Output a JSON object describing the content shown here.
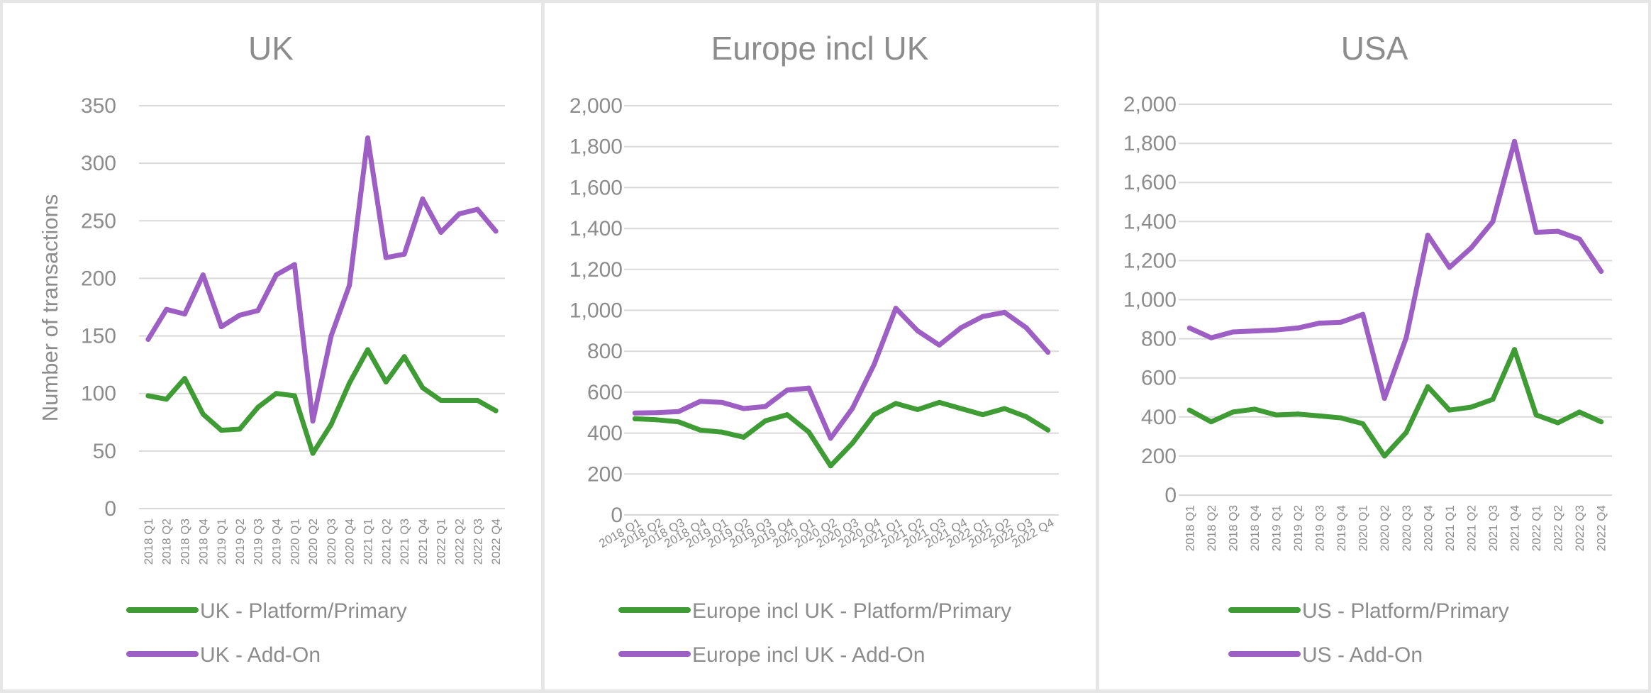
{
  "chart_data": [
    {
      "type": "line",
      "title": "UK",
      "ylabel": "Number of transactions",
      "ylim": [
        0,
        350
      ],
      "yticks": [
        "0",
        "50",
        "100",
        "150",
        "200",
        "250",
        "300",
        "350"
      ],
      "ytick_values": [
        0,
        50,
        100,
        150,
        200,
        250,
        300,
        350
      ],
      "categories": [
        "2018 Q1",
        "2018 Q2",
        "2018 Q3",
        "2018 Q4",
        "2019 Q1",
        "2019 Q2",
        "2019 Q3",
        "2019 Q4",
        "2020 Q1",
        "2020 Q2",
        "2020 Q3",
        "2020 Q4",
        "2021 Q1",
        "2021 Q2",
        "2021 Q3",
        "2021 Q4",
        "2022 Q1",
        "2022 Q2",
        "2022 Q3",
        "2022 Q4"
      ],
      "grid": true,
      "legend_position": "bottom",
      "series": [
        {
          "name": "UK - Platform/Primary",
          "color": "#3f9c35",
          "values": [
            98,
            95,
            113,
            82,
            68,
            69,
            88,
            100,
            98,
            48,
            73,
            109,
            138,
            110,
            132,
            105,
            94,
            94,
            94,
            85
          ]
        },
        {
          "name": "UK - Add-On",
          "color": "#9e5fc4",
          "values": [
            147,
            173,
            169,
            203,
            158,
            168,
            172,
            203,
            212,
            76,
            150,
            194,
            322,
            218,
            221,
            269,
            240,
            256,
            260,
            241
          ]
        }
      ]
    },
    {
      "type": "line",
      "title": "Europe incl UK",
      "ylabel": "",
      "ylim": [
        0,
        2000
      ],
      "yticks": [
        "0",
        "200",
        "400",
        "600",
        "800",
        "1,000",
        "1,200",
        "1,400",
        "1,600",
        "1,800",
        "2,000"
      ],
      "ytick_values": [
        0,
        200,
        400,
        600,
        800,
        1000,
        1200,
        1400,
        1600,
        1800,
        2000
      ],
      "categories": [
        "2018 Q1",
        "2018 Q2",
        "2018 Q3",
        "2018 Q4",
        "2019 Q1",
        "2019 Q2",
        "2019 Q3",
        "2019 Q4",
        "2020 Q1",
        "2020 Q2",
        "2020 Q3",
        "2020 Q4",
        "2021 Q1",
        "2021 Q2",
        "2021 Q3",
        "2021 Q4",
        "2022 Q1",
        "2022 Q2",
        "2022 Q3",
        "2022 Q4"
      ],
      "grid": true,
      "legend_position": "bottom",
      "series": [
        {
          "name": "Europe incl UK - Platform/Primary",
          "color": "#3f9c35",
          "values": [
            470,
            465,
            455,
            415,
            405,
            380,
            460,
            490,
            405,
            240,
            350,
            490,
            545,
            515,
            550,
            520,
            490,
            520,
            480,
            415
          ]
        },
        {
          "name": "Europe incl UK - Add-On",
          "color": "#9e5fc4",
          "values": [
            498,
            500,
            505,
            555,
            550,
            520,
            530,
            610,
            620,
            375,
            520,
            735,
            1010,
            900,
            830,
            915,
            970,
            990,
            915,
            795
          ]
        }
      ]
    },
    {
      "type": "line",
      "title": "USA",
      "ylabel": "",
      "ylim": [
        0,
        2000
      ],
      "yticks": [
        "0",
        "200",
        "400",
        "600",
        "800",
        "1,000",
        "1,200",
        "1,400",
        "1,600",
        "1,800",
        "2,000"
      ],
      "ytick_values": [
        0,
        200,
        400,
        600,
        800,
        1000,
        1200,
        1400,
        1600,
        1800,
        2000
      ],
      "categories": [
        "2018 Q1",
        "2018 Q2",
        "2018 Q3",
        "2018 Q4",
        "2019 Q1",
        "2019 Q2",
        "2019 Q3",
        "2019 Q4",
        "2020 Q1",
        "2020 Q2",
        "2020 Q3",
        "2020 Q4",
        "2021 Q1",
        "2021 Q2",
        "2021 Q3",
        "2021 Q4",
        "2022 Q1",
        "2022 Q2",
        "2022 Q3",
        "2022 Q4"
      ],
      "grid": true,
      "legend_position": "bottom",
      "series": [
        {
          "name": "US - Platform/Primary",
          "color": "#3f9c35",
          "values": [
            435,
            375,
            425,
            440,
            410,
            415,
            405,
            395,
            365,
            200,
            320,
            555,
            435,
            450,
            490,
            745,
            410,
            370,
            425,
            375
          ]
        },
        {
          "name": "US - Add-On",
          "color": "#9e5fc4",
          "values": [
            855,
            805,
            835,
            840,
            845,
            855,
            880,
            885,
            925,
            495,
            805,
            1330,
            1165,
            1265,
            1400,
            1810,
            1345,
            1350,
            1310,
            1145
          ]
        }
      ]
    }
  ]
}
